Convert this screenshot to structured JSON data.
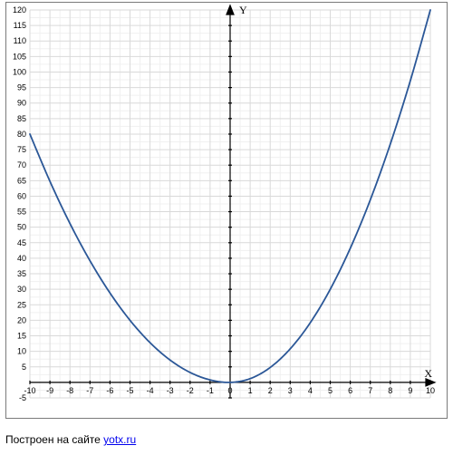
{
  "chart": {
    "type": "line",
    "function": "parabola",
    "x_axis": {
      "label": "X",
      "min": -10,
      "max": 10,
      "tick_step": 1,
      "ticks": [
        -10,
        -9,
        -8,
        -7,
        -6,
        -5,
        -4,
        -3,
        -2,
        -1,
        0,
        1,
        2,
        3,
        4,
        5,
        6,
        7,
        8,
        9,
        10
      ]
    },
    "y_axis": {
      "label": "Y",
      "min": -5,
      "max": 120,
      "tick_step": 5,
      "ticks": [
        -5,
        0,
        5,
        10,
        15,
        20,
        25,
        30,
        35,
        40,
        45,
        50,
        55,
        60,
        65,
        70,
        75,
        80,
        85,
        90,
        95,
        100,
        105,
        110,
        115,
        120
      ]
    },
    "series": [
      {
        "name": "curve",
        "color": "#2b5797",
        "line_width": 1.8,
        "points": [
          [
            -10,
            80
          ],
          [
            -9,
            64.8
          ],
          [
            -8,
            51.2
          ],
          [
            -7,
            39.2
          ],
          [
            -6,
            28.8
          ],
          [
            -5,
            20
          ],
          [
            -4,
            12.8
          ],
          [
            -3,
            7.2
          ],
          [
            -2,
            3.2
          ],
          [
            -1,
            0.8
          ],
          [
            0,
            0
          ],
          [
            1,
            1.2
          ],
          [
            2,
            4.8
          ],
          [
            3,
            10.8
          ],
          [
            4,
            19.2
          ],
          [
            5,
            30
          ],
          [
            6,
            43.2
          ],
          [
            7,
            58.8
          ],
          [
            8,
            76.8
          ],
          [
            9,
            97.2
          ],
          [
            10,
            120
          ]
        ]
      }
    ],
    "styling": {
      "background_color": "#ffffff",
      "grid_color": "#d9d9d9",
      "minor_grid_color": "#f0f0f0",
      "axis_color": "#000000",
      "border_color": "#7a7a7a",
      "tick_label_fontsize": 9,
      "axis_label_fontsize": 12,
      "caption_fontsize": 12,
      "link_color": "#0000ee"
    }
  },
  "caption": {
    "text_prefix": "Построен на сайте ",
    "link_text": "yotx.ru",
    "link_href": "#"
  }
}
